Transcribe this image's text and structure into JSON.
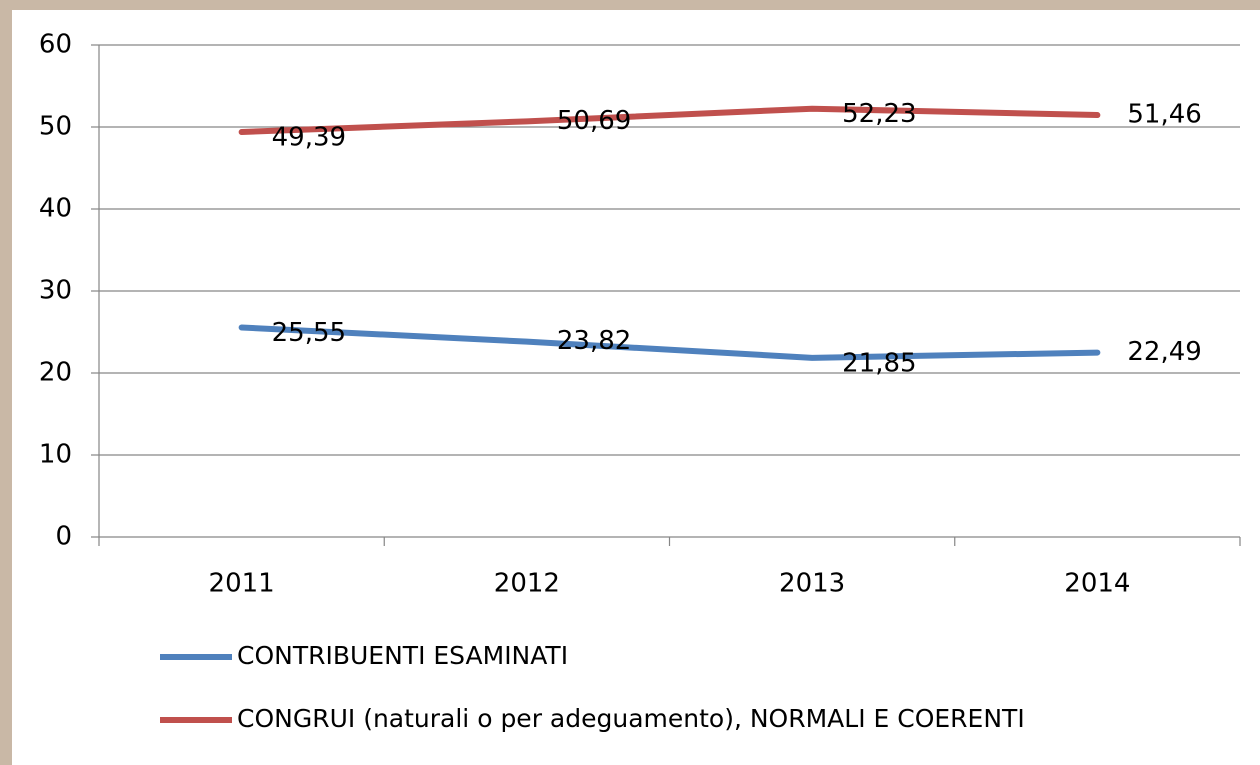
{
  "chart_data": {
    "type": "line",
    "categories": [
      "2011",
      "2012",
      "2013",
      "2014"
    ],
    "series": [
      {
        "name": "CONTRIBUENTI ESAMINATI",
        "color": "#4f81bd",
        "values": [
          25.55,
          23.82,
          21.85,
          22.49
        ],
        "value_labels": [
          "25,55",
          "23,82",
          "21,85",
          "22,49"
        ]
      },
      {
        "name": "CONGRUI (naturali o per adeguamento), NORMALI E COERENTI",
        "color": "#c0504d",
        "values": [
          49.39,
          50.69,
          52.23,
          51.46
        ],
        "value_labels": [
          "49,39",
          "50,69",
          "52,23",
          "51,46"
        ]
      }
    ],
    "ylim": [
      0,
      60
    ],
    "yticks": [
      0,
      10,
      20,
      30,
      40,
      50,
      60
    ],
    "grid": true,
    "legend": "bottom"
  }
}
